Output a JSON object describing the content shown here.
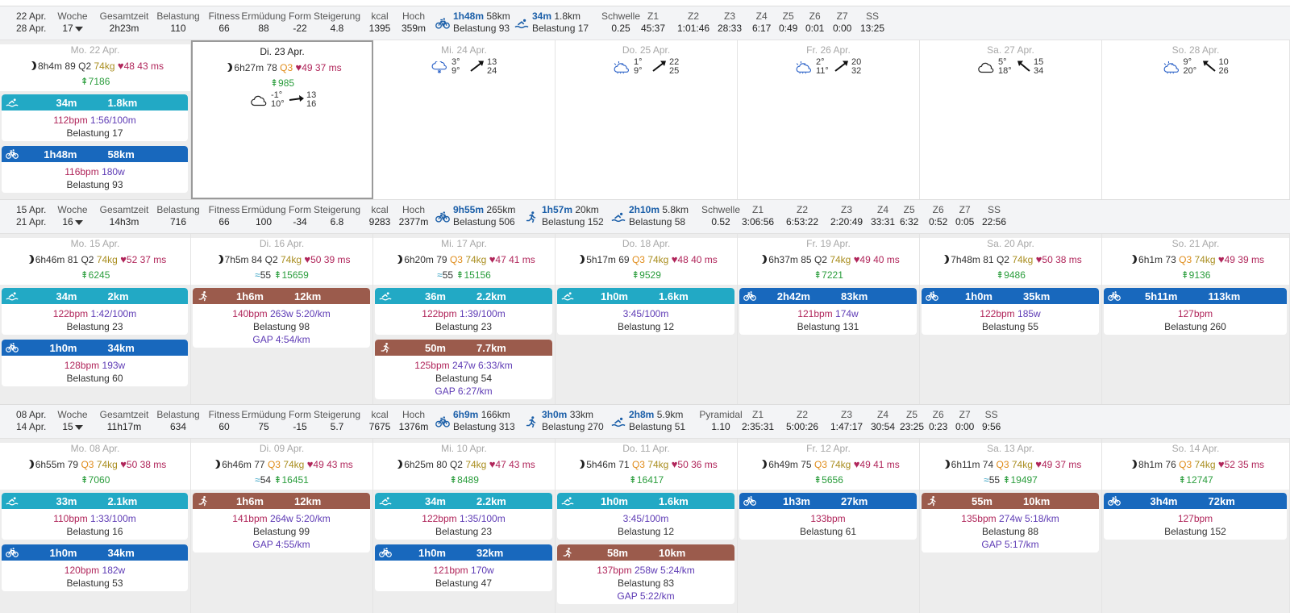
{
  "header_labels": {
    "woche": "Woche",
    "gesamtzeit": "Gesamtzeit",
    "belastung": "Belastung",
    "fitness": "Fitness",
    "ermuedung": "Ermüdung",
    "form": "Form",
    "steigerung": "Steigerung",
    "kcal": "kcal",
    "hoch": "Hoch",
    "z1": "Z1",
    "z2": "Z2",
    "z3": "Z3",
    "z4": "Z4",
    "z5": "Z5",
    "z6": "Z6",
    "z7": "Z7",
    "ss": "SS"
  },
  "colors": {
    "swim": "#22a9c5",
    "bike": "#1868bd",
    "run": "#9b5b4c",
    "fitness": "#2aa4d6",
    "fatigue": "#7b3fc4",
    "form_negative": "#e0243a",
    "form_positive": "#2a9d3c"
  },
  "weeks": [
    {
      "from": "22 Apr.",
      "to": "28 Apr.",
      "week": "17",
      "total": "2h23m",
      "load": "110",
      "fitness": "66",
      "fatigue": "88",
      "form": "-22",
      "ramp": "4.8",
      "kcal": "1395",
      "elev": "359m",
      "sports": [
        {
          "icon": "bike-icon",
          "time": "1h48m",
          "dist": "58km",
          "load": "Belastung 93"
        },
        {
          "icon": "swim-icon",
          "time": "34m",
          "dist": "1.8km",
          "load": "Belastung 17"
        }
      ],
      "threshold_label": "Schwelle",
      "threshold": "0.25",
      "zones": [
        "45:37",
        "1:01:46",
        "28:33",
        "6:17",
        "0:49",
        "0:01",
        "0:00",
        "13:25"
      ]
    },
    {
      "from": "15 Apr.",
      "to": "21 Apr.",
      "week": "16",
      "total": "14h3m",
      "load": "716",
      "fitness": "66",
      "fatigue": "100",
      "form": "-34",
      "ramp": "6.8",
      "kcal": "9283",
      "elev": "2377m",
      "sports": [
        {
          "icon": "bike-icon",
          "time": "9h55m",
          "dist": "265km",
          "load": "Belastung 506"
        },
        {
          "icon": "run-icon",
          "time": "1h57m",
          "dist": "20km",
          "load": "Belastung 152"
        },
        {
          "icon": "swim-icon",
          "time": "2h10m",
          "dist": "5.8km",
          "load": "Belastung 58"
        }
      ],
      "threshold_label": "Schwelle",
      "threshold": "0.52",
      "zones": [
        "3:06:56",
        "6:53:22",
        "2:20:49",
        "33:31",
        "6:32",
        "0:52",
        "0:05",
        "22:56"
      ]
    },
    {
      "from": "08 Apr.",
      "to": "14 Apr.",
      "week": "15",
      "total": "11h17m",
      "load": "634",
      "fitness": "60",
      "fatigue": "75",
      "form": "-15",
      "ramp": "5.7",
      "kcal": "7675",
      "elev": "1376m",
      "sports": [
        {
          "icon": "bike-icon",
          "time": "6h9m",
          "dist": "166km",
          "load": "Belastung 313"
        },
        {
          "icon": "run-icon",
          "time": "3h0m",
          "dist": "33km",
          "load": "Belastung 270"
        },
        {
          "icon": "swim-icon",
          "time": "2h8m",
          "dist": "5.9km",
          "load": "Belastung 51"
        }
      ],
      "threshold_label": "Pyramidal",
      "threshold": "1.10",
      "zones": [
        "2:35:31",
        "5:00:26",
        "1:47:17",
        "30:54",
        "23:25",
        "0:23",
        "0:00",
        "9:56"
      ]
    }
  ],
  "days": {
    "w17": [
      {
        "name": "Mo. 22 Apr.",
        "sleep": "8h4m",
        "score": "89",
        "q": "Q2",
        "kg": "74kg",
        "rhr": "48",
        "hrv": "43 ms",
        "steps": "7186",
        "acts": [
          {
            "type": "swim",
            "icon": "swim-icon",
            "time": "34m",
            "dist": "1.8km",
            "hr": "112bpm",
            "pace": "1:56/100m",
            "load": "Belastung 17"
          },
          {
            "type": "bike",
            "icon": "bike-icon",
            "time": "1h48m",
            "dist": "58km",
            "hr": "116bpm",
            "pace": "180w",
            "load": "Belastung 93"
          }
        ]
      },
      {
        "name": "Di. 23 Apr.",
        "sleep": "6h27m",
        "score": "78",
        "q": "Q3",
        "rhr": "49",
        "hrv": "37 ms",
        "steps": "985",
        "weather": {
          "icon": "cloud-icon",
          "t1": "-1°",
          "t2": "10°",
          "w1": "13",
          "w2": "16",
          "dir": "right"
        }
      },
      {
        "name": "Mi. 24 Apr.",
        "weather": {
          "icon": "snow-cloud-icon",
          "t1": "3°",
          "t2": "9°",
          "w1": "13",
          "w2": "24",
          "dir": "upright"
        }
      },
      {
        "name": "Do. 25 Apr.",
        "weather": {
          "icon": "sun-cloud-icon",
          "t1": "1°",
          "t2": "9°",
          "w1": "22",
          "w2": "25",
          "dir": "upright"
        }
      },
      {
        "name": "Fr. 26 Apr.",
        "weather": {
          "icon": "sun-cloud-icon",
          "t1": "2°",
          "t2": "11°",
          "w1": "20",
          "w2": "32",
          "dir": "upright"
        }
      },
      {
        "name": "Sa. 27 Apr.",
        "weather": {
          "icon": "cloud-icon",
          "t1": "5°",
          "t2": "18°",
          "w1": "15",
          "w2": "34",
          "dir": "upleft"
        }
      },
      {
        "name": "So. 28 Apr.",
        "weather": {
          "icon": "sun-cloud-icon",
          "t1": "9°",
          "t2": "20°",
          "w1": "10",
          "w2": "26",
          "dir": "upleft"
        }
      }
    ],
    "w16": [
      {
        "name": "Mo. 15 Apr.",
        "sleep": "6h46m",
        "score": "81",
        "q": "Q2",
        "kg": "74kg",
        "rhr": "52",
        "hrv": "37 ms",
        "steps": "6245",
        "acts": [
          {
            "type": "swim",
            "icon": "swim-icon",
            "time": "34m",
            "dist": "2km",
            "hr": "122bpm",
            "pace": "1:42/100m",
            "load": "Belastung 23"
          },
          {
            "type": "bike",
            "icon": "bike-icon",
            "time": "1h0m",
            "dist": "34km",
            "hr": "128bpm",
            "pace": "193w",
            "load": "Belastung 60"
          }
        ]
      },
      {
        "name": "Di. 16 Apr.",
        "sleep": "7h5m",
        "score": "84",
        "q": "Q2",
        "kg": "74kg",
        "rhr": "50",
        "hrv": "39 ms",
        "swim_extra": "55",
        "steps": "15659",
        "acts": [
          {
            "type": "run",
            "icon": "run-icon",
            "time": "1h6m",
            "dist": "12km",
            "hr": "140bpm",
            "pace": "263w  5:20/km",
            "load": "Belastung 98",
            "gap": "GAP 4:54/km"
          }
        ]
      },
      {
        "name": "Mi. 17 Apr.",
        "sleep": "6h20m",
        "score": "79",
        "q": "Q3",
        "kg": "74kg",
        "rhr": "47",
        "hrv": "41 ms",
        "swim_extra": "55",
        "steps": "15156",
        "acts": [
          {
            "type": "swim",
            "icon": "swim-icon",
            "time": "36m",
            "dist": "2.2km",
            "hr": "122bpm",
            "pace": "1:39/100m",
            "load": "Belastung 23"
          },
          {
            "type": "run",
            "icon": "run-icon",
            "time": "50m",
            "dist": "7.7km",
            "hr": "125bpm",
            "pace": "247w  6:33/km",
            "load": "Belastung 54",
            "gap": "GAP 6:27/km"
          }
        ]
      },
      {
        "name": "Do. 18 Apr.",
        "sleep": "5h17m",
        "score": "69",
        "q": "Q3",
        "kg": "74kg",
        "rhr": "48",
        "hrv": "40 ms",
        "steps": "9529",
        "acts": [
          {
            "type": "swim",
            "icon": "swim-icon",
            "time": "1h0m",
            "dist": "1.6km",
            "hr": "",
            "pace": "3:45/100m",
            "load": "Belastung 12"
          }
        ]
      },
      {
        "name": "Fr. 19 Apr.",
        "sleep": "6h37m",
        "score": "85",
        "q": "Q2",
        "kg": "74kg",
        "rhr": "49",
        "hrv": "40 ms",
        "steps": "7221",
        "acts": [
          {
            "type": "bike",
            "icon": "bike-icon",
            "time": "2h42m",
            "dist": "83km",
            "hr": "121bpm",
            "pace": "174w",
            "load": "Belastung 131"
          }
        ]
      },
      {
        "name": "Sa. 20 Apr.",
        "sleep": "7h48m",
        "score": "81",
        "q": "Q2",
        "kg": "74kg",
        "rhr": "50",
        "hrv": "38 ms",
        "steps": "9486",
        "acts": [
          {
            "type": "bike",
            "icon": "bike-icon",
            "time": "1h0m",
            "dist": "35km",
            "hr": "122bpm",
            "pace": "185w",
            "load": "Belastung 55"
          }
        ]
      },
      {
        "name": "So. 21 Apr.",
        "sleep": "6h1m",
        "score": "73",
        "q": "Q3",
        "kg": "74kg",
        "rhr": "49",
        "hrv": "39 ms",
        "steps": "9136",
        "acts": [
          {
            "type": "bike",
            "icon": "bike-icon",
            "time": "5h11m",
            "dist": "113km",
            "hr": "127bpm",
            "pace": "",
            "load": "Belastung 260"
          }
        ]
      }
    ],
    "w15": [
      {
        "name": "Mo. 08 Apr.",
        "sleep": "6h55m",
        "score": "79",
        "q": "Q3",
        "kg": "74kg",
        "rhr": "50",
        "hrv": "38 ms",
        "steps": "7060",
        "acts": [
          {
            "type": "swim",
            "icon": "swim-icon",
            "time": "33m",
            "dist": "2.1km",
            "hr": "110bpm",
            "pace": "1:33/100m",
            "load": "Belastung 16"
          },
          {
            "type": "bike",
            "icon": "bike-icon",
            "time": "1h0m",
            "dist": "34km",
            "hr": "120bpm",
            "pace": "182w",
            "load": "Belastung 53"
          }
        ]
      },
      {
        "name": "Di. 09 Apr.",
        "sleep": "6h46m",
        "score": "77",
        "q": "Q3",
        "kg": "74kg",
        "rhr": "49",
        "hrv": "43 ms",
        "swim_extra": "54",
        "steps": "16451",
        "acts": [
          {
            "type": "run",
            "icon": "run-icon",
            "time": "1h6m",
            "dist": "12km",
            "hr": "141bpm",
            "pace": "264w  5:20/km",
            "load": "Belastung 99",
            "gap": "GAP 4:55/km"
          }
        ]
      },
      {
        "name": "Mi. 10 Apr.",
        "sleep": "6h25m",
        "score": "80",
        "q": "Q2",
        "kg": "74kg",
        "rhr": "47",
        "hrv": "43 ms",
        "steps": "8489",
        "acts": [
          {
            "type": "swim",
            "icon": "swim-icon",
            "time": "34m",
            "dist": "2.2km",
            "hr": "122bpm",
            "pace": "1:35/100m",
            "load": "Belastung 23"
          },
          {
            "type": "bike",
            "icon": "bike-icon",
            "time": "1h0m",
            "dist": "32km",
            "hr": "121bpm",
            "pace": "170w",
            "load": "Belastung 47"
          }
        ]
      },
      {
        "name": "Do. 11 Apr.",
        "sleep": "5h46m",
        "score": "71",
        "q": "Q3",
        "kg": "74kg",
        "rhr": "50",
        "hrv": "36 ms",
        "steps": "16417",
        "acts": [
          {
            "type": "swim",
            "icon": "swim-icon",
            "time": "1h0m",
            "dist": "1.6km",
            "hr": "",
            "pace": "3:45/100m",
            "load": "Belastung 12"
          },
          {
            "type": "run",
            "icon": "run-icon",
            "time": "58m",
            "dist": "10km",
            "hr": "137bpm",
            "pace": "258w  5:24/km",
            "load": "Belastung 83",
            "gap": "GAP 5:22/km"
          }
        ]
      },
      {
        "name": "Fr. 12 Apr.",
        "sleep": "6h49m",
        "score": "75",
        "q": "Q3",
        "kg": "74kg",
        "rhr": "49",
        "hrv": "41 ms",
        "steps": "5656",
        "acts": [
          {
            "type": "bike",
            "icon": "bike-icon",
            "time": "1h3m",
            "dist": "27km",
            "hr": "133bpm",
            "pace": "",
            "load": "Belastung 61"
          }
        ]
      },
      {
        "name": "Sa. 13 Apr.",
        "sleep": "6h11m",
        "score": "74",
        "q": "Q3",
        "kg": "74kg",
        "rhr": "49",
        "hrv": "37 ms",
        "swim_extra": "55",
        "steps": "19497",
        "acts": [
          {
            "type": "run",
            "icon": "run-icon",
            "time": "55m",
            "dist": "10km",
            "hr": "135bpm",
            "pace": "274w  5:18/km",
            "load": "Belastung 88",
            "gap": "GAP 5:17/km"
          }
        ]
      },
      {
        "name": "So. 14 Apr.",
        "sleep": "8h1m",
        "score": "76",
        "q": "Q3",
        "kg": "74kg",
        "rhr": "52",
        "hrv": "35 ms",
        "steps": "12747",
        "acts": [
          {
            "type": "bike",
            "icon": "bike-icon",
            "time": "3h4m",
            "dist": "72km",
            "hr": "127bpm",
            "pace": "",
            "load": "Belastung 152"
          }
        ]
      }
    ]
  }
}
